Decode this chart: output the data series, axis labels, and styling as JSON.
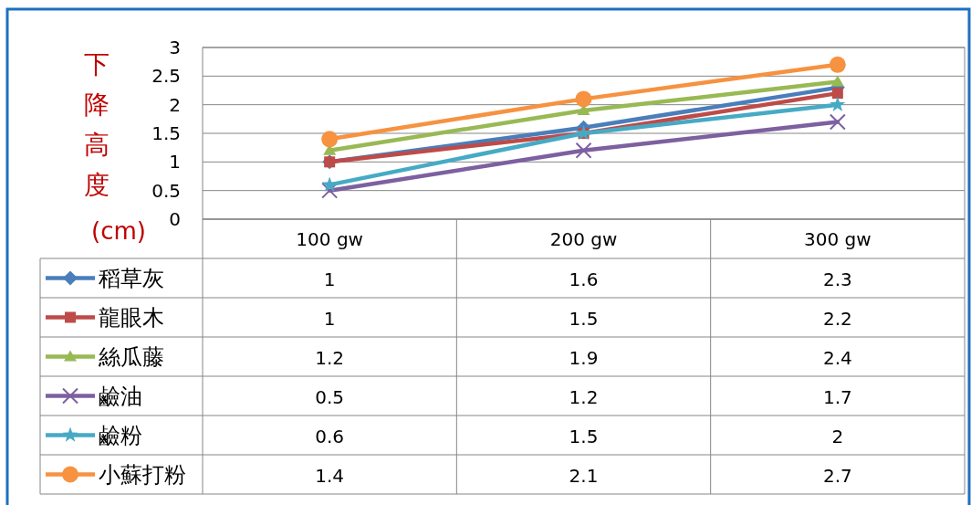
{
  "chart_data": {
    "type": "line",
    "ylabel": "下降高度(cm)",
    "categories": [
      "100 gw",
      "200 gw",
      "300 gw"
    ],
    "ylim": [
      0,
      3
    ],
    "yticks": [
      0,
      0.5,
      1,
      1.5,
      2,
      2.5,
      3
    ],
    "grid": "y",
    "legend": "bottom",
    "data_labels": true,
    "line_style": "solid",
    "series": [
      {
        "name": "稻草灰",
        "color": "#4a7ebb",
        "marker": "diamond",
        "values": [
          1,
          1.6,
          2.3
        ]
      },
      {
        "name": "龍眼木",
        "color": "#be4b48",
        "marker": "square",
        "values": [
          1,
          1.5,
          2.2
        ]
      },
      {
        "name": "絲瓜藤",
        "color": "#98b954",
        "marker": "triangle",
        "values": [
          1.2,
          1.9,
          2.4
        ]
      },
      {
        "name": "鹼油",
        "color": "#7d60a0",
        "marker": "cross",
        "values": [
          0.5,
          1.2,
          1.7
        ]
      },
      {
        "name": "鹼粉",
        "color": "#46aac5",
        "marker": "star",
        "values": [
          0.6,
          1.5,
          2
        ]
      },
      {
        "name": "小蘇打粉",
        "color": "#f69240",
        "marker": "circle",
        "values": [
          1.4,
          2.1,
          2.7
        ]
      }
    ]
  }
}
